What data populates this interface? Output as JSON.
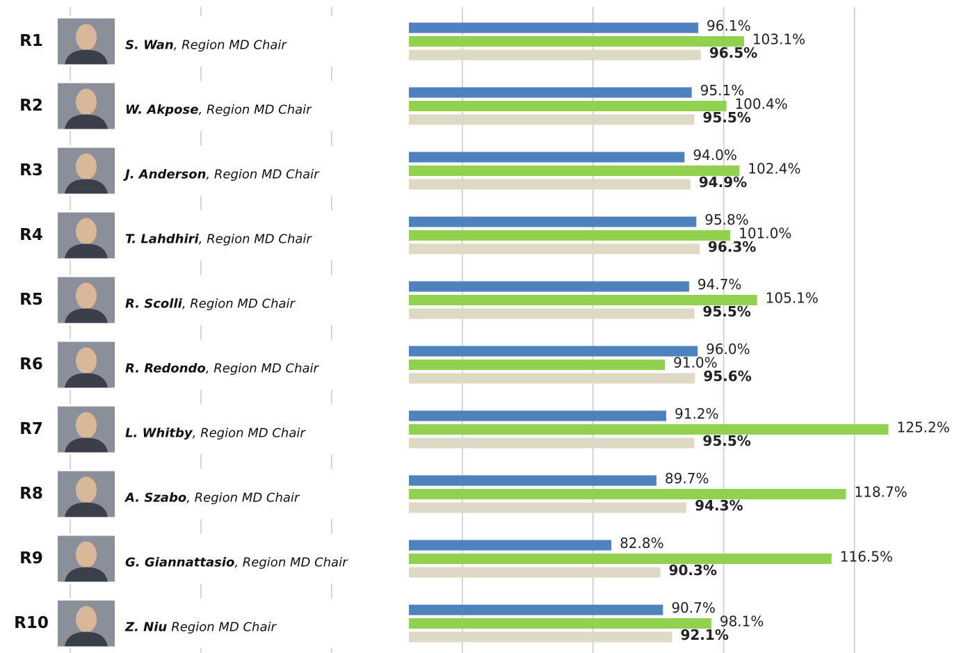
{
  "chart_data": {
    "type": "bar",
    "orientation": "horizontal",
    "categories": [
      "R1",
      "R2",
      "R3",
      "R4",
      "R5",
      "R6",
      "R7",
      "R8",
      "R9",
      "R10"
    ],
    "names": [
      "S. Wan",
      "W. Akpose",
      "J. Anderson",
      "T. Lahdhiri",
      "R. Scolli",
      "R. Redondo",
      "L. Whitby",
      "A. Szabo",
      "G. Giannattasio",
      "Z. Niu"
    ],
    "roles": [
      ", Region MD Chair",
      ", Region MD Chair",
      ", Region MD Chair",
      ", Region MD Chair",
      ", Region MD Chair",
      ", Region MD Chair",
      ", Region MD Chair",
      ", Region MD Chair",
      ", Region MD Chair",
      "Region MD Chair"
    ],
    "series": [
      {
        "color": "#4f81bd",
        "values": [
          96.1,
          95.1,
          94.0,
          95.8,
          94.7,
          96.0,
          91.2,
          89.7,
          82.8,
          90.7
        ],
        "value_labels": [
          "96.1%",
          "95.1%",
          "94.0%",
          "95.8%",
          "94.7%",
          "96.0%",
          "91.2%",
          "89.7%",
          "82.8%",
          "90.7%"
        ]
      },
      {
        "color": "#92d050",
        "values": [
          103.1,
          100.4,
          102.4,
          101.0,
          105.1,
          91.0,
          125.2,
          118.7,
          116.5,
          98.1
        ],
        "value_labels": [
          "103.1%",
          "100.4%",
          "102.4%",
          "101.0%",
          "105.1%",
          "91.0%",
          "125.2%",
          "118.7%",
          "116.5%",
          "98.1%"
        ]
      },
      {
        "color": "#ddd9c4",
        "bold_labels": true,
        "values": [
          96.5,
          95.5,
          94.9,
          96.3,
          95.5,
          95.6,
          95.5,
          94.3,
          90.3,
          92.1
        ],
        "value_labels": [
          "96.5%",
          "95.5%",
          "94.9%",
          "96.3%",
          "95.5%",
          "95.6%",
          "95.5%",
          "94.3%",
          "90.3%",
          "92.1%"
        ]
      }
    ],
    "xlim": [
      0,
      136
    ],
    "xticks": [
      0,
      20,
      40,
      60,
      80,
      100,
      120
    ],
    "grid": true
  }
}
